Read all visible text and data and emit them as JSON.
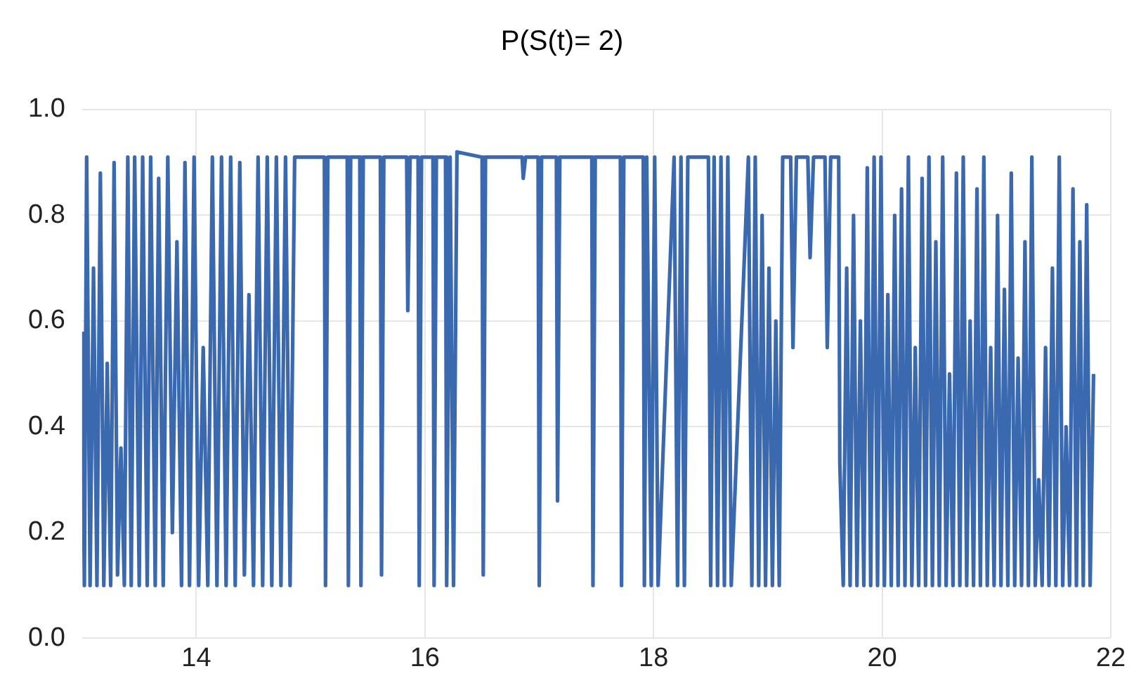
{
  "chart_data": {
    "type": "line",
    "title": "P(S(t)= 2)",
    "xlim": [
      13,
      22
    ],
    "xticks": [
      14,
      16,
      18,
      20,
      22
    ],
    "ylim": [
      0,
      1
    ],
    "yticks": [
      {
        "value": 0,
        "label": "0.0"
      },
      {
        "value": 0.2,
        "label": "0.2"
      },
      {
        "value": 0.4,
        "label": "0.4"
      },
      {
        "value": 0.6,
        "label": "0.6"
      },
      {
        "value": 0.8,
        "label": "0.8"
      },
      {
        "value": 1,
        "label": "1.0"
      }
    ],
    "grid": true,
    "legend": false,
    "marker": "none",
    "line_style": "solid",
    "series": [
      {
        "color": "#3a69b0",
        "x": [
          13.0,
          13.02,
          13.04,
          13.07,
          13.1,
          13.13,
          13.16,
          13.19,
          13.22,
          13.25,
          13.28,
          13.31,
          13.34,
          13.37,
          13.4,
          13.43,
          13.46,
          13.5,
          13.53,
          13.57,
          13.6,
          13.64,
          13.67,
          13.71,
          13.75,
          13.79,
          13.83,
          13.87,
          13.9,
          13.94,
          13.98,
          14.02,
          14.06,
          14.1,
          14.14,
          14.18,
          14.22,
          14.26,
          14.3,
          14.34,
          14.38,
          14.42,
          14.46,
          14.5,
          14.54,
          14.58,
          14.62,
          14.66,
          14.7,
          14.74,
          14.78,
          14.82,
          14.86,
          15.12,
          15.13,
          15.15,
          15.32,
          15.33,
          15.35,
          15.43,
          15.44,
          15.46,
          15.61,
          15.62,
          15.64,
          15.84,
          15.85,
          15.87,
          15.94,
          15.95,
          15.97,
          16.07,
          16.08,
          16.1,
          16.18,
          16.19,
          16.22,
          16.25,
          16.28,
          16.5,
          16.51,
          16.53,
          16.85,
          16.86,
          16.88,
          16.99,
          17.0,
          17.02,
          17.15,
          17.16,
          17.18,
          17.46,
          17.47,
          17.49,
          17.71,
          17.72,
          17.74,
          17.91,
          17.92,
          17.94,
          17.98,
          18.01,
          18.04,
          18.18,
          18.21,
          18.24,
          18.27,
          18.3,
          18.48,
          18.5,
          18.53,
          18.56,
          18.59,
          18.62,
          18.65,
          18.68,
          18.83,
          18.86,
          18.89,
          18.92,
          18.95,
          18.98,
          19.01,
          19.04,
          19.07,
          19.1,
          19.13,
          19.2,
          19.22,
          19.25,
          19.35,
          19.37,
          19.4,
          19.5,
          19.52,
          19.55,
          19.62,
          19.63,
          19.66,
          19.69,
          19.72,
          19.75,
          19.78,
          19.81,
          19.84,
          19.87,
          19.9,
          19.93,
          19.96,
          19.99,
          20.02,
          20.05,
          20.08,
          20.11,
          20.14,
          20.17,
          20.2,
          20.23,
          20.26,
          20.29,
          20.32,
          20.35,
          20.38,
          20.41,
          20.44,
          20.47,
          20.5,
          20.53,
          20.56,
          20.59,
          20.62,
          20.65,
          20.68,
          20.71,
          20.74,
          20.77,
          20.8,
          20.83,
          20.86,
          20.89,
          20.92,
          20.95,
          20.98,
          21.01,
          21.04,
          21.07,
          21.1,
          21.13,
          21.16,
          21.19,
          21.22,
          21.25,
          21.28,
          21.31,
          21.34,
          21.37,
          21.4,
          21.43,
          21.46,
          21.49,
          21.52,
          21.55,
          21.58,
          21.61,
          21.64,
          21.67,
          21.7,
          21.73,
          21.76,
          21.79,
          21.82,
          21.85
        ],
        "values": [
          0.58,
          0.1,
          0.91,
          0.1,
          0.7,
          0.1,
          0.88,
          0.1,
          0.52,
          0.1,
          0.9,
          0.12,
          0.36,
          0.1,
          0.91,
          0.1,
          0.91,
          0.1,
          0.91,
          0.1,
          0.91,
          0.1,
          0.87,
          0.1,
          0.91,
          0.2,
          0.75,
          0.1,
          0.9,
          0.1,
          0.91,
          0.1,
          0.55,
          0.1,
          0.91,
          0.1,
          0.91,
          0.1,
          0.91,
          0.1,
          0.9,
          0.12,
          0.65,
          0.1,
          0.91,
          0.1,
          0.91,
          0.1,
          0.91,
          0.1,
          0.91,
          0.1,
          0.91,
          0.91,
          0.1,
          0.91,
          0.91,
          0.1,
          0.91,
          0.91,
          0.1,
          0.91,
          0.91,
          0.12,
          0.91,
          0.91,
          0.62,
          0.91,
          0.91,
          0.1,
          0.91,
          0.91,
          0.1,
          0.91,
          0.91,
          0.1,
          0.91,
          0.1,
          0.92,
          0.91,
          0.12,
          0.91,
          0.91,
          0.87,
          0.91,
          0.91,
          0.1,
          0.91,
          0.91,
          0.26,
          0.91,
          0.91,
          0.1,
          0.91,
          0.91,
          0.1,
          0.91,
          0.91,
          0.1,
          0.91,
          0.1,
          0.91,
          0.1,
          0.91,
          0.1,
          0.91,
          0.1,
          0.91,
          0.91,
          0.1,
          0.91,
          0.1,
          0.91,
          0.1,
          0.91,
          0.1,
          0.91,
          0.1,
          0.91,
          0.1,
          0.8,
          0.1,
          0.7,
          0.1,
          0.6,
          0.1,
          0.91,
          0.91,
          0.55,
          0.91,
          0.91,
          0.72,
          0.91,
          0.91,
          0.55,
          0.91,
          0.91,
          0.33,
          0.1,
          0.7,
          0.1,
          0.8,
          0.1,
          0.6,
          0.1,
          0.89,
          0.1,
          0.91,
          0.1,
          0.91,
          0.1,
          0.65,
          0.1,
          0.8,
          0.1,
          0.85,
          0.1,
          0.91,
          0.1,
          0.55,
          0.1,
          0.87,
          0.1,
          0.91,
          0.1,
          0.75,
          0.1,
          0.91,
          0.1,
          0.5,
          0.1,
          0.88,
          0.1,
          0.91,
          0.1,
          0.6,
          0.1,
          0.85,
          0.1,
          0.91,
          0.1,
          0.55,
          0.1,
          0.8,
          0.1,
          0.66,
          0.1,
          0.88,
          0.1,
          0.53,
          0.1,
          0.75,
          0.1,
          0.91,
          0.1,
          0.3,
          0.1,
          0.55,
          0.1,
          0.7,
          0.1,
          0.91,
          0.1,
          0.4,
          0.1,
          0.85,
          0.1,
          0.75,
          0.1,
          0.82,
          0.1,
          0.5
        ]
      }
    ]
  }
}
